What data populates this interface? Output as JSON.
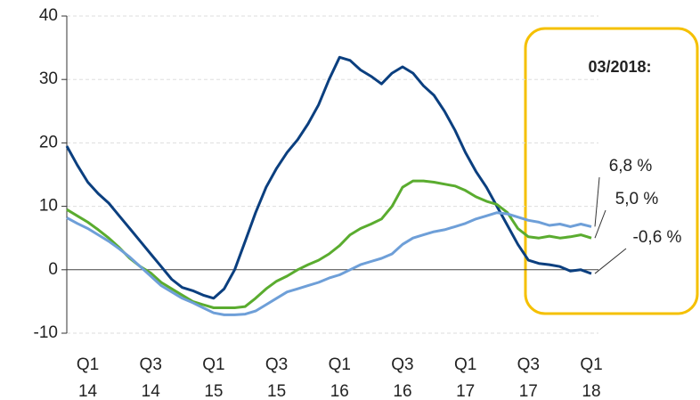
{
  "chart_data": {
    "type": "line",
    "categories": [
      null,
      null,
      [
        "Q1",
        "14"
      ],
      null,
      null,
      null,
      null,
      null,
      [
        "Q3",
        "14"
      ],
      null,
      null,
      null,
      null,
      null,
      [
        "Q1",
        "15"
      ],
      null,
      null,
      null,
      null,
      null,
      [
        "Q3",
        "15"
      ],
      null,
      null,
      null,
      null,
      null,
      [
        "Q1",
        "16"
      ],
      null,
      null,
      null,
      null,
      null,
      [
        "Q3",
        "16"
      ],
      null,
      null,
      null,
      null,
      null,
      [
        "Q1",
        "17"
      ],
      null,
      null,
      null,
      null,
      null,
      [
        "Q3",
        "17"
      ],
      null,
      null,
      null,
      null,
      null,
      [
        "Q1",
        "18"
      ]
    ],
    "series": [
      {
        "color": "#0b3f7f",
        "values": [
          19.5,
          16.5,
          13.8,
          12,
          10.5,
          8.5,
          6.5,
          4.5,
          2.5,
          0.5,
          -1.5,
          -2.8,
          -3.3,
          -4,
          -4.5,
          -3,
          0,
          4.5,
          9,
          13,
          16,
          18.5,
          20.5,
          23,
          26,
          30,
          33.5,
          33,
          31.5,
          30.5,
          29.3,
          31,
          32,
          31,
          29,
          27.5,
          25,
          22,
          18.5,
          15.5,
          13,
          10,
          7,
          4,
          1.5,
          1,
          0.8,
          0.5,
          -0.2,
          0,
          -0.6
        ],
        "value_labels": [
          null,
          null,
          null,
          null,
          null,
          null,
          null,
          null,
          null,
          null,
          null,
          null,
          null,
          null,
          null,
          null,
          null,
          null,
          null,
          null,
          null,
          null,
          null,
          null,
          null,
          null,
          null,
          null,
          null,
          null,
          null,
          null,
          null,
          null,
          null,
          null,
          null,
          null,
          null,
          null,
          null,
          null,
          null,
          null,
          null,
          null,
          null,
          null,
          null,
          null,
          "-0,6 %"
        ]
      },
      {
        "color": "#5aac2f",
        "values": [
          9.5,
          8.5,
          7.5,
          6.3,
          5,
          3.5,
          1.8,
          0.5,
          -0.5,
          -2,
          -3,
          -4,
          -5,
          -5.5,
          -6,
          -6,
          -6,
          -5.8,
          -4.5,
          -3,
          -1.8,
          -1,
          0,
          0.8,
          1.5,
          2.5,
          3.8,
          5.5,
          6.5,
          7.2,
          8,
          10,
          13,
          14,
          14,
          13.8,
          13.5,
          13.2,
          12.5,
          11.5,
          10.8,
          10.3,
          9,
          6.5,
          5.2,
          5,
          5.3,
          5,
          5.2,
          5.5,
          5.0
        ],
        "value_labels": [
          null,
          null,
          null,
          null,
          null,
          null,
          null,
          null,
          null,
          null,
          null,
          null,
          null,
          null,
          null,
          null,
          null,
          null,
          null,
          null,
          null,
          null,
          null,
          null,
          null,
          null,
          null,
          null,
          null,
          null,
          null,
          null,
          null,
          null,
          null,
          null,
          null,
          null,
          null,
          null,
          null,
          null,
          null,
          null,
          null,
          null,
          null,
          null,
          null,
          null,
          "5,0 %"
        ]
      },
      {
        "color": "#6e9fd8",
        "values": [
          8.2,
          7.3,
          6.5,
          5.5,
          4.5,
          3.3,
          2,
          0.5,
          -1,
          -2.5,
          -3.5,
          -4.5,
          -5.2,
          -6,
          -6.8,
          -7.1,
          -7.1,
          -7,
          -6.5,
          -5.5,
          -4.5,
          -3.5,
          -3,
          -2.5,
          -2,
          -1.3,
          -0.8,
          0,
          0.8,
          1.3,
          1.8,
          2.5,
          4,
          5,
          5.5,
          6,
          6.3,
          6.8,
          7.3,
          8,
          8.5,
          9,
          8.8,
          8.3,
          7.8,
          7.5,
          7,
          7.2,
          6.8,
          7.2,
          6.8
        ],
        "value_labels": [
          null,
          null,
          null,
          null,
          null,
          null,
          null,
          null,
          null,
          null,
          null,
          null,
          null,
          null,
          null,
          null,
          null,
          null,
          null,
          null,
          null,
          null,
          null,
          null,
          null,
          null,
          null,
          null,
          null,
          null,
          null,
          null,
          null,
          null,
          null,
          null,
          null,
          null,
          null,
          null,
          null,
          null,
          null,
          null,
          null,
          null,
          null,
          null,
          null,
          null,
          "6,8 %"
        ]
      }
    ],
    "ylim": [
      -10,
      40
    ],
    "yticks": [
      -10,
      0,
      10,
      20,
      30,
      40
    ],
    "grid": true,
    "annotation": "03/2018:"
  }
}
